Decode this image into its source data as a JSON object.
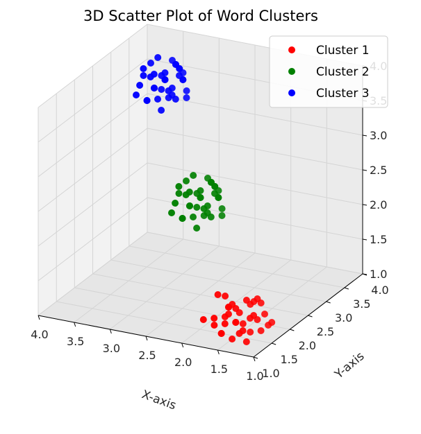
{
  "chart_data": {
    "type": "scatter",
    "projection": "3d",
    "title": "3D Scatter Plot of Word Clusters",
    "xlabel": "X-axis",
    "ylabel": "Y-axis",
    "zlabel": "",
    "xlim": [
      1.0,
      4.0
    ],
    "ylim": [
      1.0,
      4.0
    ],
    "zlim": [
      1.0,
      4.0
    ],
    "xticks": [
      "1.0",
      "1.5",
      "2.0",
      "2.5",
      "3.0",
      "3.5",
      "4.0"
    ],
    "yticks": [
      "1.0",
      "1.5",
      "2.0",
      "2.5",
      "3.0",
      "3.5",
      "4.0"
    ],
    "zticks": [
      "1.0",
      "1.5",
      "2.0",
      "2.5",
      "3.0",
      "3.5",
      "4.0"
    ],
    "grid": true,
    "legend": "top-right",
    "series": [
      {
        "name": "Cluster 1",
        "color": "#ff0000",
        "points": [
          [
            1.2,
            1.3,
            1.4
          ],
          [
            1.5,
            1.1,
            1.2
          ],
          [
            1.3,
            1.6,
            1.5
          ],
          [
            1.1,
            1.4,
            1.2
          ],
          [
            1.6,
            1.5,
            1.4
          ],
          [
            1.4,
            1.2,
            1.1
          ],
          [
            1.2,
            1.7,
            1.3
          ],
          [
            1.7,
            1.3,
            1.2
          ],
          [
            1.3,
            1.4,
            1.6
          ],
          [
            1.5,
            1.6,
            1.3
          ],
          [
            1.1,
            1.2,
            1.5
          ],
          [
            1.6,
            1.1,
            1.4
          ],
          [
            1.4,
            1.5,
            1.2
          ],
          [
            1.2,
            1.1,
            1.3
          ],
          [
            1.5,
            1.4,
            1.5
          ],
          [
            1.3,
            1.2,
            1.2
          ],
          [
            1.7,
            1.6,
            1.5
          ],
          [
            1.0,
            1.5,
            1.3
          ],
          [
            1.4,
            1.7,
            1.4
          ],
          [
            1.6,
            1.3,
            1.1
          ],
          [
            1.2,
            1.5,
            1.6
          ],
          [
            1.5,
            1.2,
            1.3
          ],
          [
            1.3,
            1.1,
            1.4
          ],
          [
            1.1,
            1.6,
            1.2
          ],
          [
            1.6,
            1.4,
            1.3
          ],
          [
            1.4,
            1.3,
            1.5
          ],
          [
            1.2,
            1.2,
            1.1
          ],
          [
            1.5,
            1.5,
            1.2
          ],
          [
            1.8,
            1.2,
            1.3
          ],
          [
            1.3,
            1.5,
            1.1
          ],
          [
            1.4,
            1.1,
            1.6
          ],
          [
            1.1,
            1.3,
            1.4
          ],
          [
            1.7,
            1.4,
            1.6
          ],
          [
            1.5,
            1.3,
            1.4
          ],
          [
            1.2,
            1.6,
            1.5
          ]
        ]
      },
      {
        "name": "Cluster 2",
        "color": "#008000",
        "points": [
          [
            2.3,
            2.2,
            2.4
          ],
          [
            2.6,
            2.4,
            2.3
          ],
          [
            2.4,
            2.7,
            2.5
          ],
          [
            2.2,
            2.5,
            2.2
          ],
          [
            2.7,
            2.3,
            2.6
          ],
          [
            2.5,
            2.6,
            2.1
          ],
          [
            2.3,
            2.4,
            2.7
          ],
          [
            2.6,
            2.2,
            2.2
          ],
          [
            2.4,
            2.3,
            2.5
          ],
          [
            2.8,
            2.5,
            2.4
          ],
          [
            2.2,
            2.2,
            2.3
          ],
          [
            2.5,
            2.7,
            2.6
          ],
          [
            2.7,
            2.6,
            2.2
          ],
          [
            2.3,
            2.6,
            2.4
          ],
          [
            2.6,
            2.5,
            2.7
          ],
          [
            2.4,
            2.2,
            2.1
          ],
          [
            2.5,
            2.4,
            2.3
          ],
          [
            2.2,
            2.3,
            2.6
          ],
          [
            2.8,
            2.7,
            2.5
          ],
          [
            2.4,
            2.5,
            2.3
          ],
          [
            2.6,
            2.3,
            2.5
          ],
          [
            2.3,
            2.7,
            2.2
          ],
          [
            2.5,
            2.2,
            2.6
          ],
          [
            2.7,
            2.4,
            2.1
          ],
          [
            2.4,
            2.6,
            2.6
          ],
          [
            2.2,
            2.4,
            2.5
          ],
          [
            2.6,
            2.6,
            2.4
          ],
          [
            2.5,
            2.3,
            2.2
          ],
          [
            2.3,
            2.3,
            2.3
          ],
          [
            2.8,
            2.3,
            2.2
          ],
          [
            2.4,
            2.8,
            2.4
          ],
          [
            2.6,
            2.7,
            2.3
          ],
          [
            2.3,
            2.5,
            2.6
          ],
          [
            2.5,
            2.5,
            2.5
          ],
          [
            2.7,
            2.2,
            2.4
          ]
        ]
      },
      {
        "name": "Cluster 3",
        "color": "#0000ff",
        "points": [
          [
            3.3,
            3.2,
            3.5
          ],
          [
            3.6,
            3.4,
            3.4
          ],
          [
            3.4,
            3.7,
            3.6
          ],
          [
            3.2,
            3.5,
            3.3
          ],
          [
            3.7,
            3.3,
            3.7
          ],
          [
            3.5,
            3.6,
            3.2
          ],
          [
            3.3,
            3.4,
            3.8
          ],
          [
            3.6,
            3.2,
            3.3
          ],
          [
            3.4,
            3.3,
            3.6
          ],
          [
            3.8,
            3.5,
            3.5
          ],
          [
            3.2,
            3.2,
            3.4
          ],
          [
            3.5,
            3.7,
            3.7
          ],
          [
            3.7,
            3.6,
            3.3
          ],
          [
            3.3,
            3.6,
            3.5
          ],
          [
            3.6,
            3.5,
            3.8
          ],
          [
            3.4,
            3.2,
            3.2
          ],
          [
            3.5,
            3.4,
            3.4
          ],
          [
            3.2,
            3.3,
            3.7
          ],
          [
            3.8,
            3.7,
            3.6
          ],
          [
            3.4,
            3.5,
            3.4
          ],
          [
            3.6,
            3.3,
            3.6
          ],
          [
            3.3,
            3.7,
            3.3
          ],
          [
            3.5,
            3.2,
            3.7
          ],
          [
            3.7,
            3.4,
            3.2
          ],
          [
            3.4,
            3.6,
            3.7
          ],
          [
            3.2,
            3.4,
            3.6
          ],
          [
            3.6,
            3.6,
            3.5
          ],
          [
            3.5,
            3.3,
            3.3
          ],
          [
            3.3,
            3.3,
            3.4
          ],
          [
            3.8,
            3.3,
            3.3
          ],
          [
            3.4,
            3.8,
            3.5
          ],
          [
            3.6,
            3.7,
            3.4
          ],
          [
            3.3,
            3.5,
            3.7
          ],
          [
            3.5,
            3.5,
            3.6
          ],
          [
            3.7,
            3.2,
            3.5
          ]
        ]
      }
    ]
  }
}
